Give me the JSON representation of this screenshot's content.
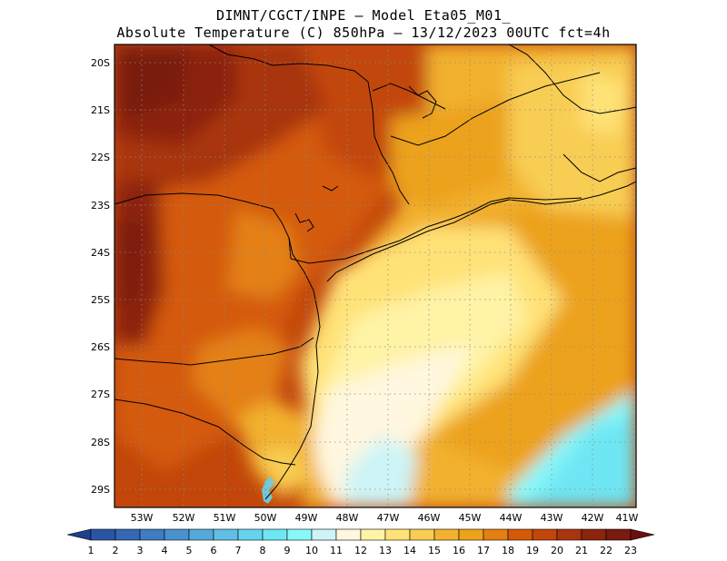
{
  "header": {
    "line1": "DIMNT/CGCT/INPE —  Model Eta05_M01_",
    "line2": "Absolute Temperature (C) 850hPa —  13/12/2023 00UTC fct=4h"
  },
  "axes": {
    "lat_labels": [
      "20S",
      "21S",
      "22S",
      "23S",
      "24S",
      "25S",
      "26S",
      "27S",
      "28S",
      "29S"
    ],
    "lon_labels": [
      "53W",
      "52W",
      "51W",
      "50W",
      "49W",
      "48W",
      "47W",
      "46W",
      "45W",
      "44W",
      "43W",
      "42W",
      "41W"
    ]
  },
  "colorbar": {
    "labels": [
      "1",
      "2",
      "3",
      "4",
      "5",
      "6",
      "7",
      "8",
      "9",
      "10",
      "11",
      "12",
      "13",
      "14",
      "15",
      "16",
      "17",
      "18",
      "19",
      "20",
      "21",
      "22",
      "23"
    ],
    "colors": [
      "#1f3f8f",
      "#2a55a6",
      "#3468b5",
      "#3f7cc2",
      "#4a92cf",
      "#55a8da",
      "#5fbfe4",
      "#66d3ec",
      "#6ee6f3",
      "#88f8fb",
      "#cdf4f7",
      "#fff7df",
      "#fff3a6",
      "#ffe277",
      "#f8cd52",
      "#f2b12f",
      "#eca21a",
      "#e48012",
      "#d45a08",
      "#c2460a",
      "#a8350d",
      "#8c240e",
      "#7a1a10",
      "#6a0e0e"
    ]
  }
}
